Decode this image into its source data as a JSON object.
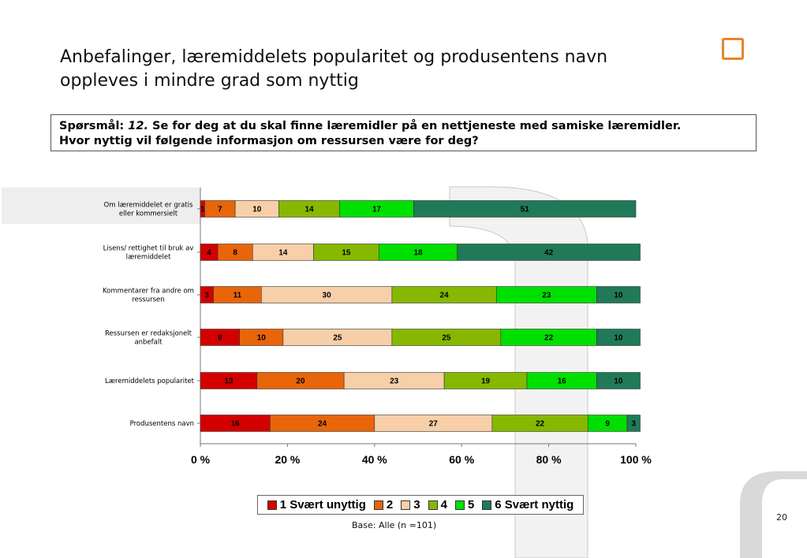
{
  "slide": {
    "title_line1": "Anbefalinger, læremiddelets popularitet og produsentens navn",
    "title_line2": "oppleves i mindre grad som nyttig",
    "question_prefix": "Spørsmål:",
    "question_number": "12.",
    "question_text_line1": "Se for deg at du skal finne læremidler på en nettjeneste med samiske læremidler.",
    "question_text_line2": "Hvor nyttig vil følgende informasjon om ressursen være for deg?",
    "base_note": "Base: Alle (n =101)",
    "page_number": "20",
    "accent_color": "#e6852a",
    "logo_icon": "square-outline-icon"
  },
  "chart_data": {
    "type": "bar",
    "orientation": "horizontal",
    "stacked": true,
    "percent": true,
    "categories": [
      "Om læremiddelet er gratis eller kommersielt",
      "Lisens/ rettighet til bruk av læremiddelet",
      "Kommentarer fra andre om ressursen",
      "Ressursen er redaksjonelt anbefalt",
      "Læremiddelets popularitet",
      "Produsentens navn"
    ],
    "series": [
      {
        "name": "1 Svært unyttig",
        "color": "#d40000",
        "values": [
          1,
          4,
          3,
          9,
          13,
          16
        ]
      },
      {
        "name": "2",
        "color": "#e8650a",
        "values": [
          7,
          8,
          11,
          10,
          20,
          24
        ]
      },
      {
        "name": "3",
        "color": "#f7cfa8",
        "values": [
          10,
          14,
          30,
          25,
          23,
          27
        ]
      },
      {
        "name": "4",
        "color": "#86b800",
        "values": [
          14,
          15,
          24,
          25,
          19,
          22
        ]
      },
      {
        "name": "5",
        "color": "#00e000",
        "values": [
          17,
          18,
          23,
          22,
          16,
          9
        ]
      },
      {
        "name": "6 Svært nyttig",
        "color": "#207a58",
        "values": [
          51,
          42,
          10,
          10,
          10,
          3
        ]
      }
    ],
    "xticks": [
      "0 %",
      "20 %",
      "40 %",
      "60 %",
      "80 %",
      "100 %"
    ],
    "xlim": [
      0,
      100
    ],
    "legend_position": "bottom"
  }
}
